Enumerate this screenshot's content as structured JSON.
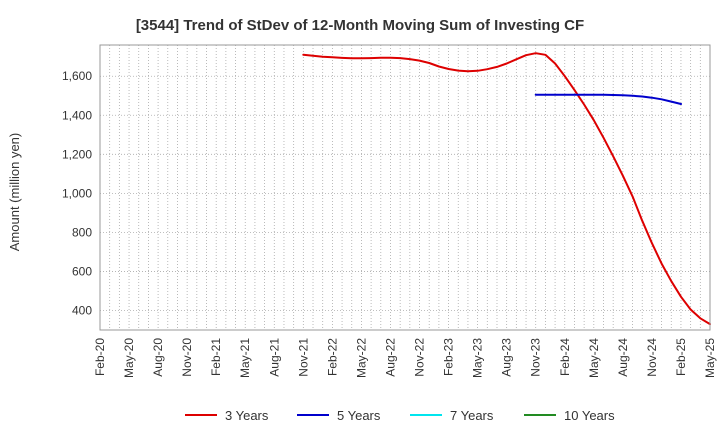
{
  "chart_data": {
    "type": "line",
    "title": "[3544]  Trend of StDev of 12-Month Moving Sum of Investing CF",
    "xlabel": "",
    "ylabel": "Amount (million yen)",
    "ylim": [
      300,
      1760
    ],
    "yticks": [
      400,
      600,
      800,
      1000,
      1200,
      1400,
      1600
    ],
    "ytick_labels": [
      "400",
      "600",
      "800",
      "1,000",
      "1,200",
      "1,400",
      "1,600"
    ],
    "x_labels": [
      "Feb-20",
      "May-20",
      "Aug-20",
      "Nov-20",
      "Feb-21",
      "May-21",
      "Aug-21",
      "Nov-21",
      "Feb-22",
      "May-22",
      "Aug-22",
      "Nov-22",
      "Feb-23",
      "May-23",
      "Aug-23",
      "Nov-23",
      "Feb-24",
      "May-24",
      "Aug-24",
      "Nov-24",
      "Feb-25",
      "May-25"
    ],
    "grid": true,
    "legend_position": "bottom",
    "series": [
      {
        "name": "3 Years",
        "color": "#dd0000",
        "start_index": 21,
        "values": [
          1710,
          1705,
          1700,
          1697,
          1694,
          1692,
          1692,
          1693,
          1695,
          1695,
          1693,
          1688,
          1680,
          1668,
          1650,
          1637,
          1629,
          1626,
          1628,
          1636,
          1648,
          1665,
          1687,
          1708,
          1718,
          1710,
          1665,
          1600,
          1530,
          1455,
          1375,
          1285,
          1190,
          1090,
          985,
          860,
          745,
          640,
          550,
          470,
          405,
          360,
          330
        ]
      },
      {
        "name": "5 Years",
        "color": "#0000cc",
        "start_index": 45,
        "values": [
          1505,
          1505,
          1505,
          1505,
          1505,
          1505,
          1505,
          1505,
          1504,
          1503,
          1500,
          1496,
          1490,
          1482,
          1470,
          1458
        ]
      },
      {
        "name": "7 Years",
        "color": "#00e5ee",
        "start_index": 0,
        "values": []
      },
      {
        "name": "10 Years",
        "color": "#228b22",
        "start_index": 0,
        "values": []
      }
    ]
  }
}
